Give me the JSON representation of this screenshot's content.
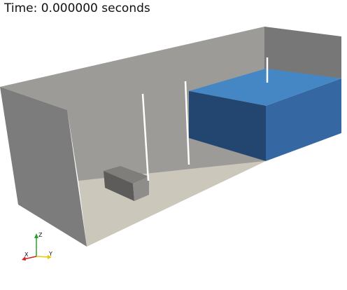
{
  "viewer": {
    "time_label": "Time: 0.000000 seconds"
  },
  "orientation_axes": {
    "x_label": "X",
    "y_label": "Y",
    "z_label": "Z",
    "x_color": "#d42020",
    "y_color": "#e8c800",
    "z_color": "#2aa02a"
  },
  "colors": {
    "background": "#ffffff",
    "wall_back": "#9c9b98",
    "wall_left_side": "#7c7c7c",
    "wall_right_end": "#777777",
    "floor": "#cbc7bb",
    "water_top": "#4587c4",
    "water_front": "#234671",
    "water_side": "#3568a3",
    "obstacle_top": "#7f7e7b",
    "obstacle_front": "#5d5c5a",
    "obstacle_side": "#8e8d8a",
    "probe_lines": "#ffffff"
  }
}
